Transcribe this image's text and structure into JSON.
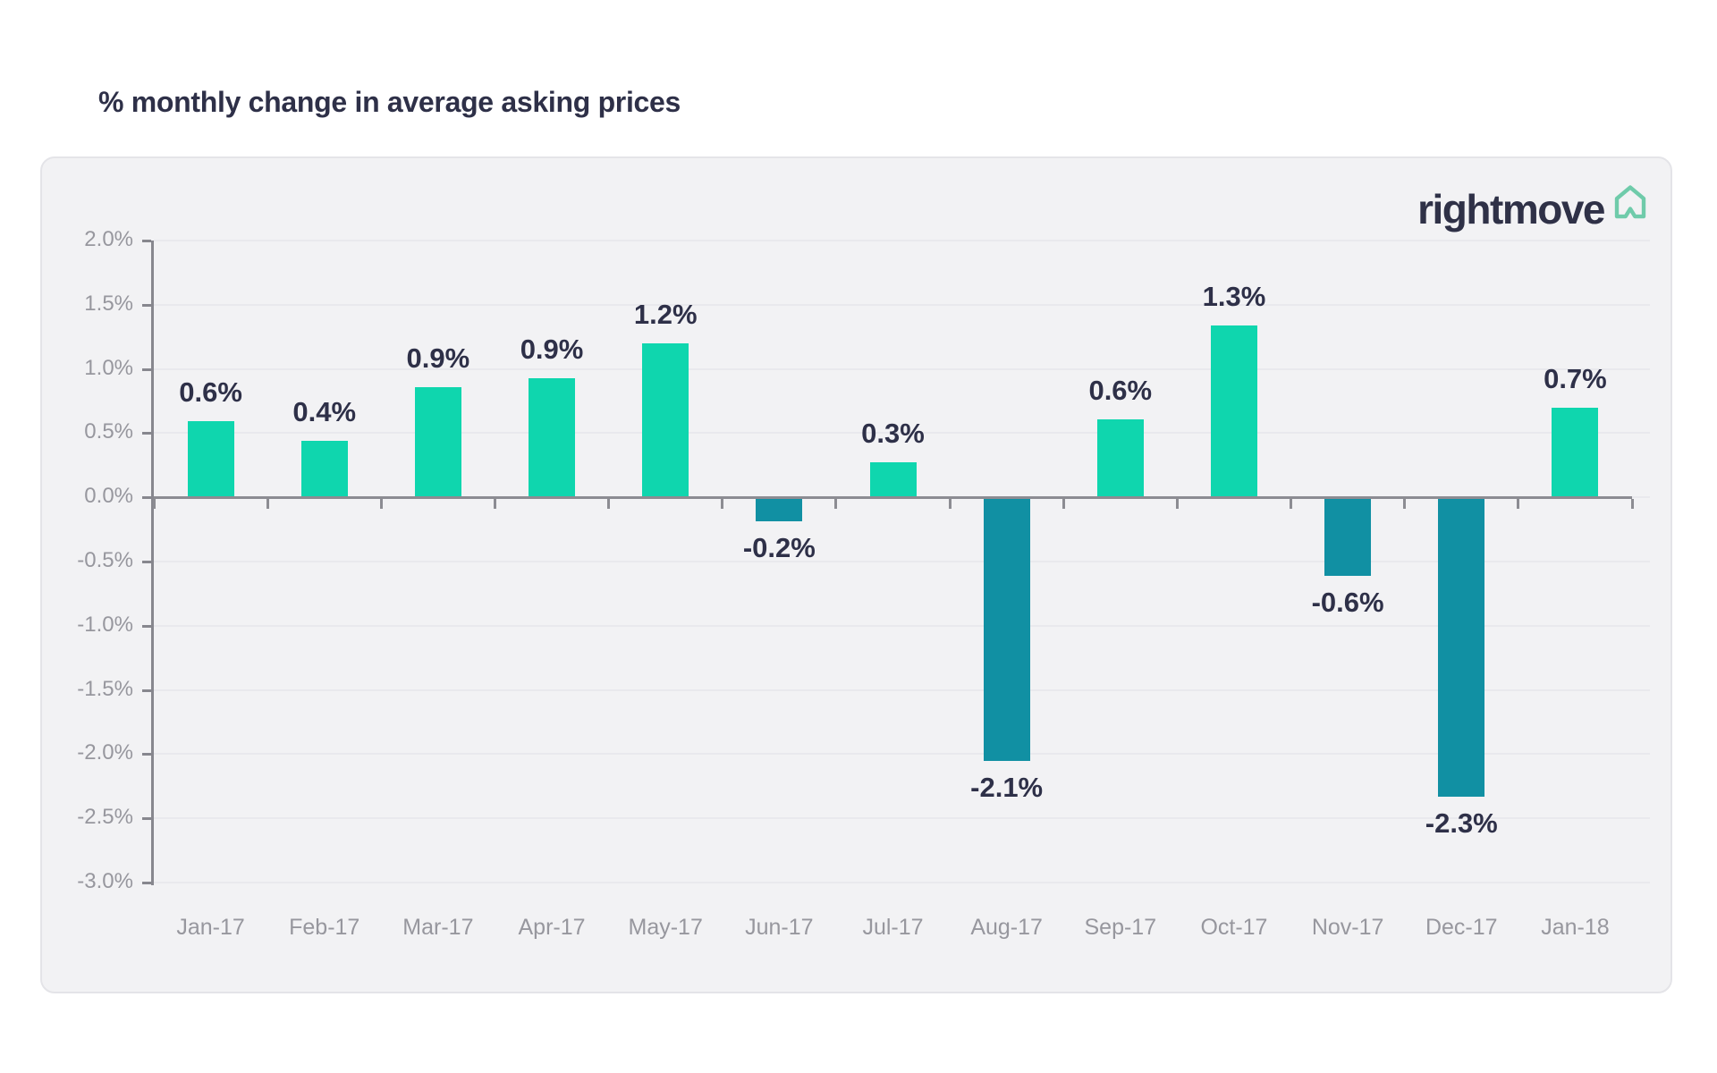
{
  "page": {
    "title": "% monthly change in average asking prices",
    "brand": "rightmove"
  },
  "chart_data": {
    "type": "bar",
    "title": "% monthly change in average asking prices",
    "categories": [
      "Jan-17",
      "Feb-17",
      "Mar-17",
      "Apr-17",
      "May-17",
      "Jun-17",
      "Jul-17",
      "Aug-17",
      "Sep-17",
      "Oct-17",
      "Nov-17",
      "Dec-17",
      "Jan-18"
    ],
    "values": [
      0.59,
      0.44,
      0.86,
      0.93,
      1.2,
      -0.19,
      0.27,
      -2.05,
      0.61,
      1.34,
      -0.61,
      -2.33,
      0.7
    ],
    "bar_labels": [
      "0.6%",
      "0.4%",
      "0.9%",
      "0.9%",
      "1.2%",
      "-0.2%",
      "0.3%",
      "-2.1%",
      "0.6%",
      "1.3%",
      "-0.6%",
      "-2.3%",
      "0.7%"
    ],
    "xlabel": "",
    "ylabel": "",
    "ylim": [
      -3.0,
      2.0
    ],
    "yticks": [
      {
        "v": 2.0,
        "label": "2.0%"
      },
      {
        "v": 1.5,
        "label": "1.5%"
      },
      {
        "v": 1.0,
        "label": "1.0%"
      },
      {
        "v": 0.5,
        "label": "0.5%"
      },
      {
        "v": 0.0,
        "label": "0.0%"
      },
      {
        "v": -0.5,
        "label": "-0.5%"
      },
      {
        "v": -1.0,
        "label": "-1.0%"
      },
      {
        "v": -1.5,
        "label": "-1.5%"
      },
      {
        "v": -2.0,
        "label": "-2.0%"
      },
      {
        "v": -2.5,
        "label": "-2.5%"
      },
      {
        "v": -3.0,
        "label": "-3.0%"
      }
    ],
    "grid": true,
    "legend": "none",
    "colors": {
      "positive": "#0fd6ae",
      "negative": "#1190a3",
      "axis": "#8c8c92",
      "grid": "#e9e9ed",
      "tick_text": "#97979e",
      "label_text": "#2e3048",
      "card_bg": "#f2f2f4",
      "brand_text": "#2f3147",
      "brand_icon": "#6fcbaa"
    }
  }
}
